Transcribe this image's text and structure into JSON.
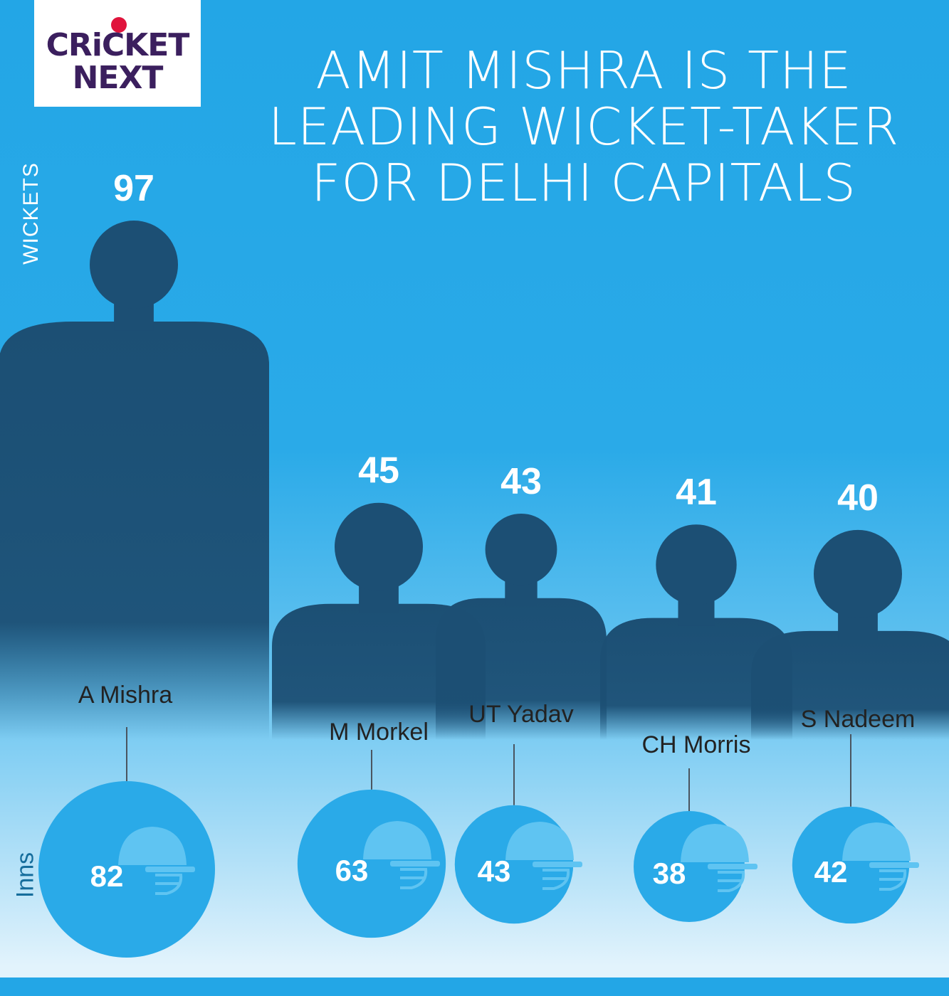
{
  "brand": {
    "line1": "CRiCKET",
    "line2": "NEXT"
  },
  "title_lines": [
    "AMIT MISHRA IS THE",
    "LEADING WICKET-TAKER",
    "FOR DELHI CAPITALS"
  ],
  "chart_data": {
    "type": "bar",
    "title": "AMIT MISHRA IS THE LEADING WICKET-TAKER FOR DELHI CAPITALS",
    "ylabel": "WICKETS",
    "secondary_label": "Inns",
    "categories": [
      "A Mishra",
      "M Morkel",
      "UT Yadav",
      "CH Morris",
      "S Nadeem"
    ],
    "series": [
      {
        "name": "WICKETS",
        "values": [
          97,
          45,
          43,
          41,
          40
        ]
      },
      {
        "name": "Inns",
        "values": [
          82,
          63,
          43,
          38,
          42
        ]
      }
    ],
    "colors": {
      "player_silhouette": "#1c4f74",
      "inns_bubble": "#2aaae8",
      "helmet": "#5fc4f2",
      "stem": "#4a5560"
    }
  }
}
